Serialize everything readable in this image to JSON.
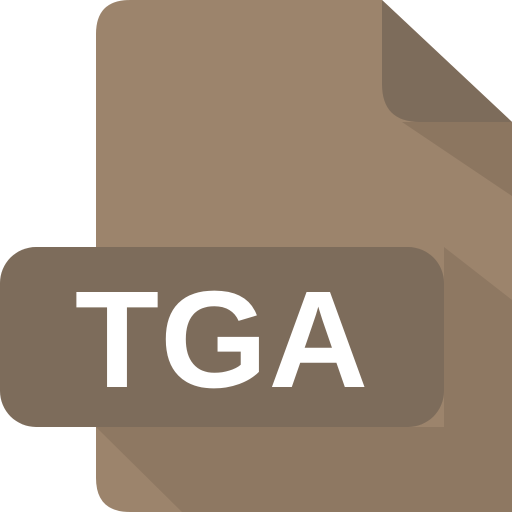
{
  "file_icon": {
    "extension_label": "TGA",
    "icon_name": "tga-file-icon",
    "colors": {
      "page": "#9C846C",
      "page_shadow": "#8C7660",
      "folded_corner": "#7D6C5B",
      "label_background": "#7D6C5B",
      "label_text": "#FFFFFF"
    }
  }
}
